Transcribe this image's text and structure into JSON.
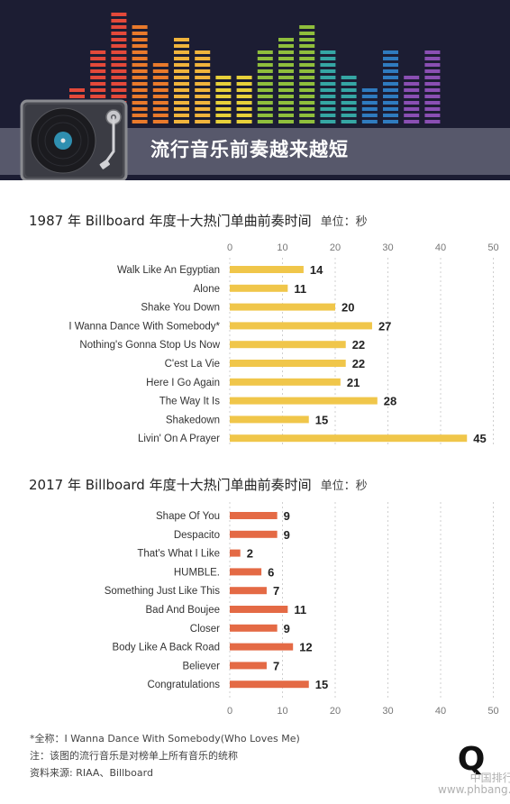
{
  "header": {
    "title": "流行音乐前奏越来越短",
    "eq_colors": [
      "#e4493a",
      "#e97a2b",
      "#f0b43c",
      "#e7d03a",
      "#8fbe3c",
      "#35a6a4",
      "#2f7bbf",
      "#8a4fb3"
    ]
  },
  "chart_data": [
    {
      "type": "bar",
      "orientation": "horizontal",
      "title": "1987 年 Billboard 年度十大热门单曲前奏时间",
      "unit": "单位：秒",
      "color": "#f0c64a",
      "categories": [
        "Walk Like An Egyptian",
        "Alone",
        "Shake You Down",
        "I Wanna Dance With Somebody*",
        "Nothing's Gonna Stop Us Now",
        "C'est La Vie",
        "Here I Go Again",
        "The Way It Is",
        "Shakedown",
        "Livin' On A Prayer"
      ],
      "values": [
        14,
        11,
        20,
        27,
        22,
        22,
        21,
        28,
        15,
        45
      ],
      "xlim": [
        0,
        50
      ],
      "xticks": [
        0,
        10,
        20,
        30,
        40,
        50
      ],
      "axis_position": "top",
      "grid": true
    },
    {
      "type": "bar",
      "orientation": "horizontal",
      "title": "2017 年 Billboard 年度十大热门单曲前奏时间",
      "unit": "单位：秒",
      "color": "#e46a45",
      "categories": [
        "Shape Of You",
        "Despacito",
        "That's What I Like",
        "HUMBLE.",
        "Something Just Like This",
        "Bad And Boujee",
        "Closer",
        "Body Like A Back Road",
        "Believer",
        "Congratulations"
      ],
      "values": [
        9,
        9,
        2,
        6,
        7,
        11,
        9,
        12,
        7,
        15
      ],
      "xlim": [
        0,
        50
      ],
      "xticks": [
        0,
        10,
        20,
        30,
        40,
        50
      ],
      "axis_position": "bottom",
      "grid": true
    }
  ],
  "footer": {
    "note1": "*全称：I Wanna Dance With Somebody(Who Loves Me)",
    "note2": "注：该图的流行音乐是对榜单上所有音乐的统称",
    "source": "资料来源: RIAA、Billboard"
  },
  "logo_text": "Q",
  "watermark": {
    "line1": "中国排行网",
    "line2": "www.phbang.cn"
  }
}
